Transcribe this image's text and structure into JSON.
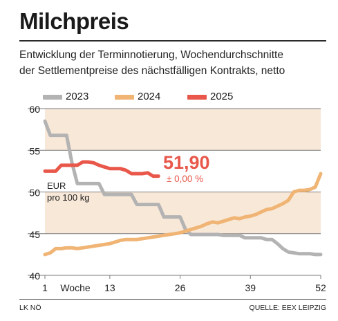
{
  "header": {
    "title": "Milchpreis",
    "subtitle_line1": "Entwicklung der Terminnotierung, Wochendurchschnitte",
    "subtitle_line2": "der Settlementpreise des nächstfälligen Kontrakts, netto"
  },
  "footer": {
    "left": "LK NÖ",
    "right": "QUELLE: EEX LEIPZIG"
  },
  "chart_data": {
    "type": "line",
    "ylabel_line1": "EUR",
    "ylabel_line2": "pro 100 kg",
    "xlabel": "Woche",
    "x_ticks": [
      1,
      13,
      26,
      39,
      52
    ],
    "y_ticks": [
      40,
      45,
      50,
      55,
      60
    ],
    "xlim": [
      1,
      52
    ],
    "ylim": [
      40,
      60
    ],
    "band_color": "#f8e8d8",
    "highlight": {
      "value": "51,90",
      "change": "± 0,00 %",
      "color": "#e8574a"
    },
    "series": [
      {
        "name": "2023",
        "color": "#b3b3b3",
        "x": [
          1,
          2,
          3,
          4,
          5,
          6,
          7,
          8,
          9,
          10,
          11,
          12,
          13,
          14,
          15,
          16,
          17,
          18,
          19,
          20,
          21,
          22,
          23,
          24,
          25,
          26,
          27,
          28,
          29,
          30,
          31,
          32,
          33,
          34,
          35,
          36,
          37,
          38,
          39,
          40,
          41,
          42,
          43,
          44,
          45,
          46,
          47,
          48,
          49,
          50,
          51,
          52
        ],
        "values": [
          58.5,
          56.8,
          56.8,
          56.8,
          56.8,
          53.5,
          51.0,
          51.0,
          51.0,
          51.0,
          51.0,
          49.7,
          49.7,
          49.7,
          49.7,
          49.7,
          49.7,
          48.5,
          48.5,
          48.5,
          48.5,
          48.5,
          47.0,
          47.0,
          47.0,
          47.0,
          45.5,
          44.9,
          44.9,
          44.9,
          44.9,
          44.9,
          44.9,
          44.8,
          44.8,
          44.8,
          44.8,
          44.5,
          44.5,
          44.5,
          44.5,
          44.3,
          44.3,
          43.8,
          43.2,
          42.8,
          42.7,
          42.6,
          42.6,
          42.6,
          42.5,
          42.5
        ]
      },
      {
        "name": "2024",
        "color": "#f0b474",
        "x": [
          1,
          2,
          3,
          4,
          5,
          6,
          7,
          8,
          9,
          10,
          11,
          12,
          13,
          14,
          15,
          16,
          17,
          18,
          19,
          20,
          21,
          22,
          23,
          24,
          25,
          26,
          27,
          28,
          29,
          30,
          31,
          32,
          33,
          34,
          35,
          36,
          37,
          38,
          39,
          40,
          41,
          42,
          43,
          44,
          45,
          46,
          47,
          48,
          49,
          50,
          51,
          52
        ],
        "values": [
          42.5,
          42.7,
          43.2,
          43.2,
          43.3,
          43.3,
          43.2,
          43.3,
          43.4,
          43.5,
          43.6,
          43.7,
          43.8,
          44.0,
          44.2,
          44.3,
          44.3,
          44.3,
          44.4,
          44.5,
          44.6,
          44.7,
          44.8,
          44.9,
          45.0,
          45.1,
          45.3,
          45.5,
          45.7,
          45.9,
          46.2,
          46.4,
          46.3,
          46.5,
          46.7,
          46.9,
          46.8,
          47.0,
          47.1,
          47.3,
          47.6,
          47.9,
          48.0,
          48.3,
          48.6,
          49.0,
          50.0,
          50.2,
          50.2,
          50.3,
          50.6,
          52.2
        ]
      },
      {
        "name": "2025",
        "color": "#e8574a",
        "x": [
          1,
          2,
          3,
          4,
          5,
          6,
          7,
          8,
          9,
          10,
          11,
          12,
          13,
          14,
          15,
          16,
          17,
          18,
          19,
          20,
          21,
          22
        ],
        "values": [
          52.5,
          52.5,
          52.5,
          53.2,
          53.2,
          53.2,
          53.2,
          53.6,
          53.6,
          53.5,
          53.2,
          53.0,
          52.8,
          52.8,
          52.8,
          52.6,
          52.2,
          52.2,
          52.2,
          52.3,
          51.9,
          51.9
        ]
      }
    ]
  }
}
